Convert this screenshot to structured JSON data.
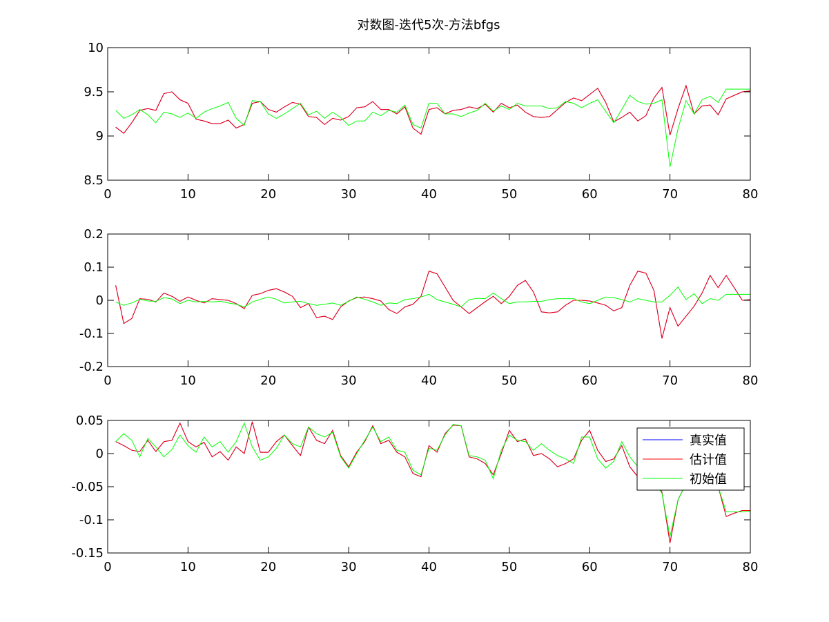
{
  "figure": {
    "title": "对数图-迭代5次-方法bfgs"
  },
  "legend": {
    "entries": [
      {
        "label": "真实值",
        "color": "#0000ff"
      },
      {
        "label": "估计值",
        "color": "#ff0000"
      },
      {
        "label": "初始值",
        "color": "#00ff00"
      }
    ],
    "placement": "top-right of bottom subplot"
  },
  "chart_data": [
    {
      "type": "line",
      "title": "对数图-迭代5次-方法bfgs",
      "xlim": [
        0,
        80
      ],
      "ylim": [
        8.5,
        10
      ],
      "xticks": [
        "0",
        "10",
        "20",
        "30",
        "40",
        "50",
        "60",
        "70",
        "80"
      ],
      "yticks": [
        "8.5",
        "9",
        "9.5",
        "10"
      ],
      "grid": false,
      "x": [
        1,
        2,
        3,
        4,
        5,
        6,
        7,
        8,
        9,
        10,
        11,
        12,
        13,
        14,
        15,
        16,
        17,
        18,
        19,
        20,
        21,
        22,
        23,
        24,
        25,
        26,
        27,
        28,
        29,
        30,
        31,
        32,
        33,
        34,
        35,
        36,
        37,
        38,
        39,
        40,
        41,
        42,
        43,
        44,
        45,
        46,
        47,
        48,
        49,
        50,
        51,
        52,
        53,
        54,
        55,
        56,
        57,
        58,
        59,
        60,
        61,
        62,
        63,
        64,
        65,
        66,
        67,
        68,
        69,
        70,
        71,
        72,
        73,
        74,
        75,
        76,
        77,
        78,
        79,
        80
      ],
      "series": [
        {
          "name": "真实值",
          "color": "#0000ff",
          "hidden_under": "估计值",
          "values": [
            9.1,
            9.03,
            9.15,
            9.29,
            9.31,
            9.29,
            9.48,
            9.5,
            9.41,
            9.37,
            9.19,
            9.17,
            9.14,
            9.14,
            9.18,
            9.09,
            9.13,
            9.37,
            9.39,
            9.3,
            9.27,
            9.33,
            9.38,
            9.36,
            9.22,
            9.21,
            9.13,
            9.2,
            9.18,
            9.22,
            9.32,
            9.33,
            9.39,
            9.3,
            9.3,
            9.25,
            9.33,
            9.09,
            9.02,
            9.3,
            9.32,
            9.25,
            9.29,
            9.3,
            9.33,
            9.31,
            9.36,
            9.27,
            9.37,
            9.32,
            9.35,
            9.27,
            9.22,
            9.21,
            9.22,
            9.3,
            9.38,
            9.43,
            9.4,
            9.47,
            9.54,
            9.38,
            9.16,
            9.21,
            9.27,
            9.17,
            9.23,
            9.43,
            9.55,
            9.01,
            9.31,
            9.57,
            9.25,
            9.34,
            9.35,
            9.24,
            9.42,
            9.46,
            9.5,
            9.51
          ]
        },
        {
          "name": "估计值",
          "color": "#ff0000",
          "values": [
            9.1,
            9.03,
            9.15,
            9.29,
            9.31,
            9.29,
            9.48,
            9.5,
            9.41,
            9.37,
            9.19,
            9.17,
            9.14,
            9.14,
            9.18,
            9.09,
            9.13,
            9.37,
            9.39,
            9.3,
            9.27,
            9.33,
            9.38,
            9.36,
            9.22,
            9.21,
            9.13,
            9.2,
            9.18,
            9.22,
            9.32,
            9.33,
            9.39,
            9.3,
            9.3,
            9.25,
            9.33,
            9.09,
            9.02,
            9.3,
            9.32,
            9.25,
            9.29,
            9.3,
            9.33,
            9.31,
            9.36,
            9.27,
            9.37,
            9.32,
            9.35,
            9.27,
            9.22,
            9.21,
            9.22,
            9.3,
            9.38,
            9.43,
            9.4,
            9.47,
            9.54,
            9.38,
            9.16,
            9.21,
            9.27,
            9.17,
            9.23,
            9.43,
            9.55,
            9.01,
            9.31,
            9.57,
            9.25,
            9.34,
            9.35,
            9.24,
            9.42,
            9.46,
            9.5,
            9.51
          ]
        },
        {
          "name": "初始值",
          "color": "#00ff00",
          "values": [
            9.29,
            9.2,
            9.24,
            9.3,
            9.24,
            9.15,
            9.27,
            9.25,
            9.21,
            9.26,
            9.2,
            9.27,
            9.31,
            9.34,
            9.38,
            9.2,
            9.12,
            9.4,
            9.39,
            9.25,
            9.2,
            9.25,
            9.31,
            9.37,
            9.24,
            9.28,
            9.2,
            9.27,
            9.21,
            9.12,
            9.17,
            9.17,
            9.27,
            9.23,
            9.29,
            9.27,
            9.35,
            9.13,
            9.09,
            9.37,
            9.37,
            9.25,
            9.25,
            9.22,
            9.26,
            9.29,
            9.37,
            9.28,
            9.34,
            9.3,
            9.37,
            9.34,
            9.34,
            9.34,
            9.31,
            9.32,
            9.39,
            9.37,
            9.32,
            9.37,
            9.41,
            9.28,
            9.15,
            9.3,
            9.46,
            9.39,
            9.36,
            9.37,
            9.41,
            8.65,
            9.08,
            9.4,
            9.25,
            9.41,
            9.45,
            9.38,
            9.53,
            9.53,
            9.53,
            9.53
          ]
        }
      ]
    },
    {
      "type": "line",
      "xlim": [
        0,
        80
      ],
      "ylim": [
        -0.2,
        0.2
      ],
      "xticks": [
        "0",
        "10",
        "20",
        "30",
        "40",
        "50",
        "60",
        "70",
        "80"
      ],
      "yticks": [
        "-0.2",
        "-0.1",
        "0",
        "0.1",
        "0.2"
      ],
      "grid": false,
      "x": [
        1,
        2,
        3,
        4,
        5,
        6,
        7,
        8,
        9,
        10,
        11,
        12,
        13,
        14,
        15,
        16,
        17,
        18,
        19,
        20,
        21,
        22,
        23,
        24,
        25,
        26,
        27,
        28,
        29,
        30,
        31,
        32,
        33,
        34,
        35,
        36,
        37,
        38,
        39,
        40,
        41,
        42,
        43,
        44,
        45,
        46,
        47,
        48,
        49,
        50,
        51,
        52,
        53,
        54,
        55,
        56,
        57,
        58,
        59,
        60,
        61,
        62,
        63,
        64,
        65,
        66,
        67,
        68,
        69,
        70,
        71,
        72,
        73,
        74,
        75,
        76,
        77,
        78,
        79,
        80
      ],
      "series": [
        {
          "name": "真实值",
          "color": "#0000ff",
          "hidden_under": "估计值",
          "values": [
            0.045,
            -0.07,
            -0.055,
            0.005,
            0.003,
            -0.005,
            0.022,
            0.012,
            -0.003,
            0.01,
            0.0,
            -0.008,
            0.005,
            0.002,
            0.0,
            -0.01,
            -0.025,
            0.015,
            0.02,
            0.03,
            0.035,
            0.025,
            0.012,
            -0.022,
            -0.01,
            -0.052,
            -0.048,
            -0.058,
            -0.02,
            -0.002,
            0.008,
            0.01,
            0.005,
            -0.002,
            -0.028,
            -0.04,
            -0.02,
            -0.012,
            0.012,
            0.088,
            0.08,
            0.04,
            0.0,
            -0.02,
            -0.04,
            -0.022,
            -0.004,
            0.012,
            -0.01,
            0.012,
            0.045,
            0.06,
            0.025,
            -0.035,
            -0.038,
            -0.035,
            -0.015,
            0.0,
            0.0,
            -0.002,
            -0.008,
            -0.015,
            -0.032,
            -0.022,
            0.045,
            0.088,
            0.082,
            0.03,
            -0.115,
            -0.022,
            -0.078,
            -0.048,
            -0.018,
            0.022,
            0.075,
            0.038,
            0.075,
            0.038,
            0.0,
            0.002
          ]
        },
        {
          "name": "估计值",
          "color": "#ff0000",
          "values": [
            0.045,
            -0.07,
            -0.055,
            0.005,
            0.003,
            -0.005,
            0.022,
            0.012,
            -0.003,
            0.01,
            0.0,
            -0.008,
            0.005,
            0.002,
            0.0,
            -0.01,
            -0.025,
            0.015,
            0.02,
            0.03,
            0.035,
            0.025,
            0.012,
            -0.022,
            -0.01,
            -0.052,
            -0.048,
            -0.058,
            -0.02,
            -0.002,
            0.008,
            0.01,
            0.005,
            -0.002,
            -0.028,
            -0.04,
            -0.02,
            -0.012,
            0.012,
            0.088,
            0.08,
            0.04,
            0.0,
            -0.02,
            -0.04,
            -0.022,
            -0.004,
            0.012,
            -0.01,
            0.012,
            0.045,
            0.06,
            0.025,
            -0.035,
            -0.038,
            -0.035,
            -0.015,
            0.0,
            0.0,
            -0.002,
            -0.008,
            -0.015,
            -0.032,
            -0.022,
            0.045,
            0.088,
            0.082,
            0.03,
            -0.115,
            -0.022,
            -0.078,
            -0.048,
            -0.018,
            0.022,
            0.075,
            0.038,
            0.075,
            0.038,
            0.0,
            0.002
          ]
        },
        {
          "name": "初始值",
          "color": "#00ff00",
          "values": [
            -0.005,
            -0.015,
            -0.008,
            0.003,
            -0.002,
            -0.003,
            0.008,
            0.004,
            -0.01,
            0.0,
            -0.005,
            -0.003,
            -0.005,
            -0.003,
            -0.008,
            -0.012,
            -0.02,
            -0.005,
            0.003,
            0.01,
            0.003,
            -0.008,
            -0.005,
            -0.003,
            -0.01,
            -0.015,
            -0.012,
            -0.008,
            -0.015,
            -0.003,
            0.01,
            0.003,
            -0.005,
            -0.015,
            -0.008,
            -0.01,
            0.002,
            0.005,
            0.01,
            0.018,
            0.002,
            -0.005,
            -0.012,
            -0.02,
            0.002,
            0.006,
            0.005,
            0.022,
            0.005,
            -0.01,
            -0.005,
            -0.005,
            -0.003,
            -0.003,
            0.002,
            0.005,
            0.005,
            0.005,
            -0.005,
            -0.01,
            0.0,
            0.01,
            0.008,
            0.002,
            -0.005,
            0.005,
            0.0,
            -0.005,
            -0.005,
            0.015,
            0.04,
            0.002,
            0.02,
            -0.01,
            0.005,
            0.0,
            0.018,
            0.018,
            0.018,
            0.018
          ]
        }
      ]
    },
    {
      "type": "line",
      "xlim": [
        0,
        80
      ],
      "ylim": [
        -0.15,
        0.05
      ],
      "xticks": [
        "0",
        "10",
        "20",
        "30",
        "40",
        "50",
        "60",
        "70",
        "80"
      ],
      "yticks": [
        "-0.15",
        "-0.1",
        "-0.05",
        "0",
        "0.05"
      ],
      "grid": false,
      "legend_loc": "top-right",
      "x": [
        1,
        2,
        3,
        4,
        5,
        6,
        7,
        8,
        9,
        10,
        11,
        12,
        13,
        14,
        15,
        16,
        17,
        18,
        19,
        20,
        21,
        22,
        23,
        24,
        25,
        26,
        27,
        28,
        29,
        30,
        31,
        32,
        33,
        34,
        35,
        36,
        37,
        38,
        39,
        40,
        41,
        42,
        43,
        44,
        45,
        46,
        47,
        48,
        49,
        50,
        51,
        52,
        53,
        54,
        55,
        56,
        57,
        58,
        59,
        60,
        61,
        62,
        63,
        64,
        65,
        66,
        67,
        68,
        69,
        70,
        71,
        72,
        73,
        74,
        75,
        76,
        77,
        78,
        79,
        80
      ],
      "series": [
        {
          "name": "真实值",
          "color": "#0000ff",
          "values": [
            0.018,
            0.012,
            0.005,
            0.003,
            0.02,
            0.003,
            0.018,
            0.02,
            0.046,
            0.018,
            0.01,
            0.017,
            -0.005,
            0.003,
            -0.01,
            0.01,
            0.0,
            0.048,
            0.002,
            0.002,
            0.018,
            0.028,
            0.012,
            -0.003,
            0.04,
            0.02,
            0.015,
            0.035,
            -0.003,
            -0.02,
            0.002,
            0.018,
            0.042,
            0.015,
            0.02,
            0.002,
            -0.005,
            -0.03,
            -0.035,
            0.012,
            0.002,
            0.03,
            0.043,
            0.042,
            -0.005,
            -0.008,
            -0.015,
            -0.032,
            0.0,
            0.035,
            0.018,
            0.022,
            -0.003,
            0.0,
            -0.008,
            -0.02,
            -0.015,
            -0.008,
            0.02,
            0.035,
            0.005,
            -0.012,
            -0.008,
            0.012,
            -0.02,
            -0.035,
            -0.03,
            -0.04,
            -0.058,
            -0.135,
            -0.07,
            -0.045,
            -0.03,
            -0.04,
            -0.045,
            -0.05,
            -0.095,
            -0.09,
            -0.086,
            -0.086
          ]
        },
        {
          "name": "估计值",
          "color": "#ff0000",
          "values": [
            0.018,
            0.012,
            0.005,
            0.003,
            0.02,
            0.003,
            0.018,
            0.02,
            0.046,
            0.018,
            0.01,
            0.017,
            -0.005,
            0.003,
            -0.01,
            0.01,
            0.0,
            0.048,
            0.002,
            0.002,
            0.018,
            0.028,
            0.012,
            -0.003,
            0.04,
            0.02,
            0.015,
            0.035,
            -0.003,
            -0.02,
            0.002,
            0.018,
            0.042,
            0.015,
            0.02,
            0.002,
            -0.005,
            -0.03,
            -0.035,
            0.012,
            0.002,
            0.03,
            0.043,
            0.042,
            -0.005,
            -0.008,
            -0.015,
            -0.032,
            0.0,
            0.035,
            0.018,
            0.022,
            -0.003,
            0.0,
            -0.008,
            -0.02,
            -0.015,
            -0.008,
            0.02,
            0.035,
            0.005,
            -0.012,
            -0.008,
            0.012,
            -0.02,
            -0.035,
            -0.03,
            -0.04,
            -0.058,
            -0.135,
            -0.07,
            -0.045,
            -0.03,
            -0.04,
            -0.045,
            -0.05,
            -0.095,
            -0.09,
            -0.086,
            -0.086
          ]
        },
        {
          "name": "初始值",
          "color": "#00ff00",
          "values": [
            0.018,
            0.03,
            0.02,
            -0.005,
            0.023,
            0.01,
            -0.005,
            0.006,
            0.028,
            0.012,
            0.002,
            0.025,
            0.01,
            0.018,
            0.002,
            0.018,
            0.046,
            0.01,
            -0.01,
            -0.005,
            0.008,
            0.028,
            0.015,
            0.01,
            0.04,
            0.03,
            0.025,
            0.032,
            -0.005,
            -0.022,
            0.0,
            0.02,
            0.04,
            0.018,
            0.025,
            0.005,
            0.002,
            -0.025,
            -0.032,
            0.008,
            0.005,
            0.028,
            0.044,
            0.042,
            -0.003,
            -0.005,
            -0.01,
            -0.038,
            0.005,
            0.028,
            0.02,
            0.018,
            0.005,
            0.015,
            0.005,
            -0.003,
            -0.008,
            -0.015,
            0.025,
            0.025,
            -0.008,
            -0.022,
            -0.012,
            0.018,
            -0.005,
            -0.02,
            -0.03,
            -0.04,
            -0.06,
            -0.125,
            -0.07,
            -0.045,
            -0.03,
            -0.04,
            -0.045,
            -0.05,
            -0.088,
            -0.088,
            -0.088,
            -0.087
          ]
        }
      ]
    }
  ]
}
